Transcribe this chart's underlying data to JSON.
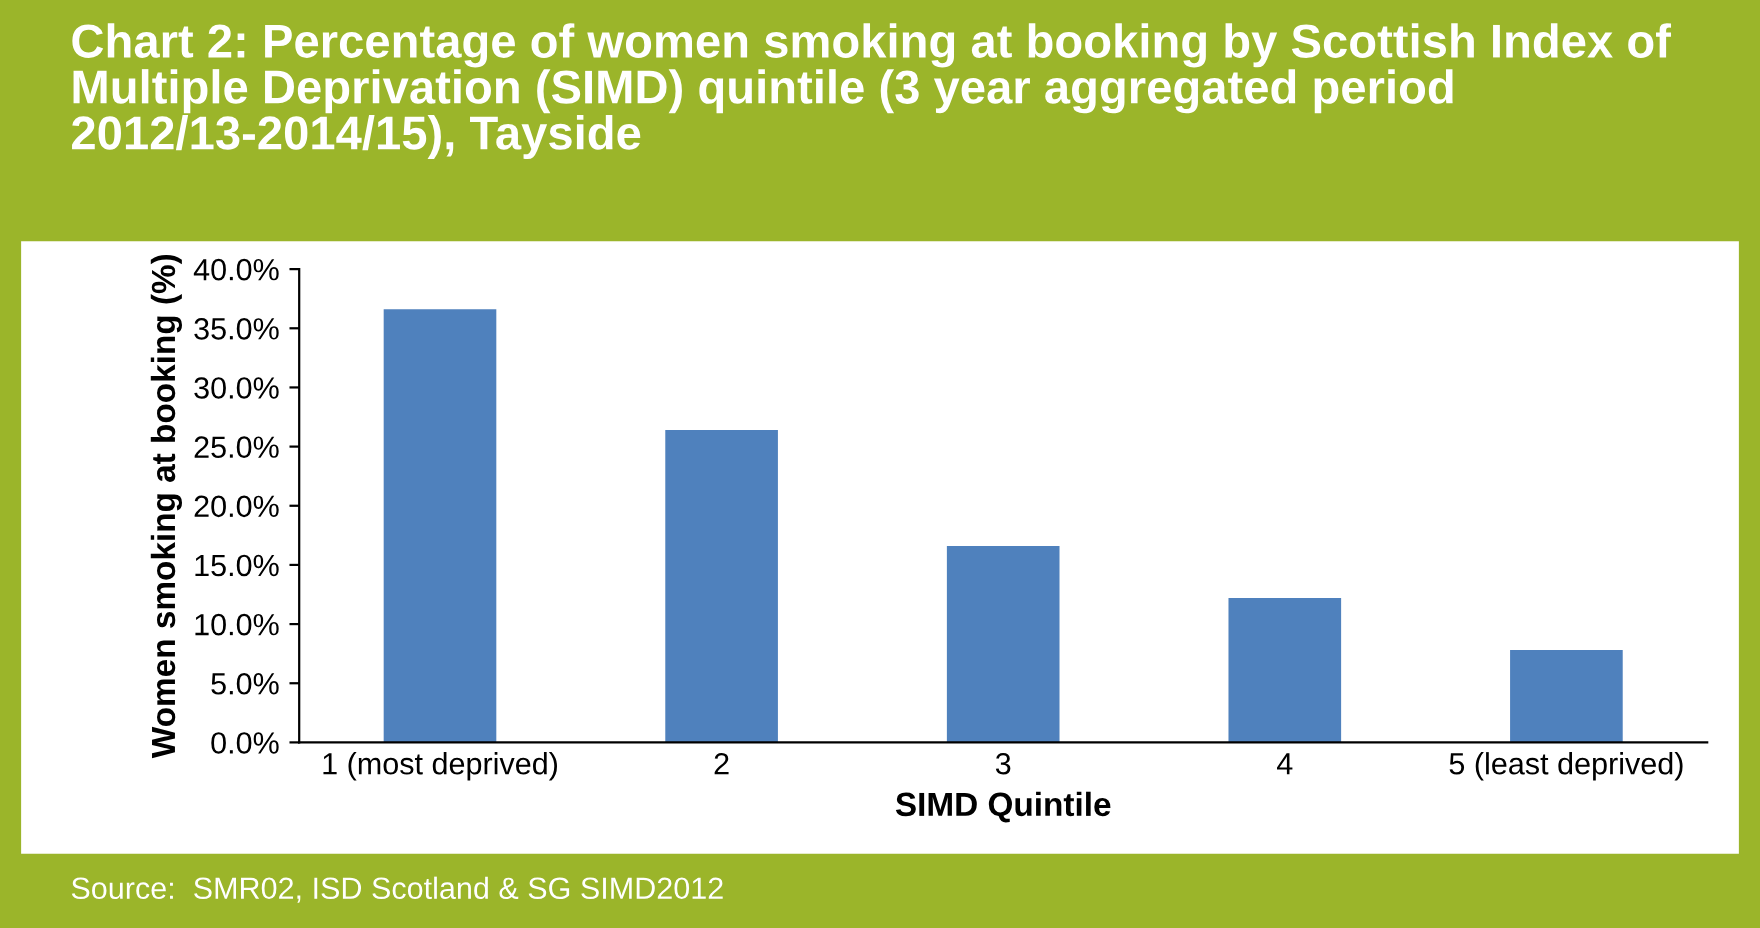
{
  "chart_data": {
    "type": "bar",
    "title": "Chart 2: Percentage of women smoking at booking by Scottish Index of Multiple Deprivation (SIMD) quintile (3 year aggregated period 2012/13-2014/15), Tayside",
    "xlabel": "SIMD Quintile",
    "ylabel": "Women smoking at booking (%)",
    "categories": [
      "1 (most deprived)",
      "2",
      "3",
      "4",
      "5 (least deprived)"
    ],
    "values": [
      36.6,
      26.4,
      16.6,
      12.2,
      7.8
    ],
    "color": "#4f81bd",
    "ylim": [
      0,
      40
    ],
    "yticks": [
      {
        "value": 0,
        "label": "0.0%"
      },
      {
        "value": 5,
        "label": "5.0%"
      },
      {
        "value": 10,
        "label": "10.0%"
      },
      {
        "value": 15,
        "label": "15.0%"
      },
      {
        "value": 20,
        "label": "20.0%"
      },
      {
        "value": 25,
        "label": "25.0%"
      },
      {
        "value": 30,
        "label": "30.0%"
      },
      {
        "value": 35,
        "label": "35.0%"
      },
      {
        "value": 40,
        "label": "40.0%"
      }
    ],
    "grid": false,
    "legend": false,
    "annotations": [
      "Source:  SMR02, ISD Scotland & SG SIMD2012"
    ]
  }
}
